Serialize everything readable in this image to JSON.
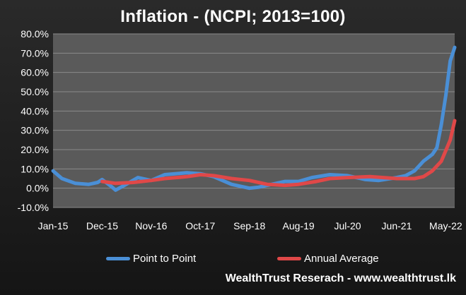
{
  "colors": {
    "background": "#1e1e1e",
    "plot_area": "#5a5a5a",
    "gridline": "#8a8a8a",
    "point_to_point": "#4a8fd6",
    "annual_average": "#e04848",
    "text": "#ffffff"
  },
  "chart_data": {
    "type": "line",
    "title": "Inflation - (NCPI; 2013=100)",
    "xlabel": "",
    "ylabel": "",
    "ylim": [
      -10,
      80
    ],
    "yticks": [
      -10,
      0,
      10,
      20,
      30,
      40,
      50,
      60,
      70,
      80
    ],
    "ytick_labels": [
      "-10.0%",
      "0.0%",
      "10.0%",
      "20.0%",
      "30.0%",
      "40.0%",
      "50.0%",
      "60.0%",
      "70.0%",
      "80.0%"
    ],
    "x_start": "Jan-15",
    "x_end": "Jul-22",
    "xtick_labels": [
      "Jan-15",
      "Dec-15",
      "Nov-16",
      "Oct-17",
      "Sep-18",
      "Aug-19",
      "Jul-20",
      "Jun-21",
      "May-22"
    ],
    "xtick_positions": [
      "Jan-15",
      "Dec-15",
      "Nov-16",
      "Oct-17",
      "Sep-18",
      "Aug-19",
      "Jul-20",
      "Jun-21",
      "May-22"
    ],
    "grid": true,
    "legend_position": "bottom",
    "series": [
      {
        "name": "Point to Point",
        "color": "#4a8fd6",
        "points": [
          [
            "Jan-15",
            9
          ],
          [
            "Mar-15",
            5
          ],
          [
            "Jun-15",
            2.5
          ],
          [
            "Sep-15",
            2
          ],
          [
            "Nov-15",
            3
          ],
          [
            "Dec-15",
            4.5
          ],
          [
            "Feb-16",
            1
          ],
          [
            "Mar-16",
            -1
          ],
          [
            "May-16",
            1.5
          ],
          [
            "Aug-16",
            5.5
          ],
          [
            "Nov-16",
            4
          ],
          [
            "Feb-17",
            7
          ],
          [
            "Jul-17",
            8
          ],
          [
            "Oct-17",
            7.5
          ],
          [
            "Jan-18",
            6
          ],
          [
            "May-18",
            2
          ],
          [
            "Jul-18",
            1
          ],
          [
            "Sep-18",
            0
          ],
          [
            "Nov-18",
            0.5
          ],
          [
            "Feb-19",
            2
          ],
          [
            "May-19",
            3.5
          ],
          [
            "Aug-19",
            3.5
          ],
          [
            "Nov-19",
            5.5
          ],
          [
            "Mar-20",
            7
          ],
          [
            "Jul-20",
            6.5
          ],
          [
            "Nov-20",
            4.5
          ],
          [
            "Feb-21",
            4
          ],
          [
            "Jun-21",
            5.5
          ],
          [
            "Aug-21",
            6.5
          ],
          [
            "Oct-21",
            9
          ],
          [
            "Dec-21",
            14
          ],
          [
            "Feb-22",
            17.5
          ],
          [
            "Mar-22",
            21
          ],
          [
            "Apr-22",
            33
          ],
          [
            "May-22",
            48
          ],
          [
            "Jun-22",
            66
          ],
          [
            "Jul-22",
            73
          ]
        ]
      },
      {
        "name": "Annual Average",
        "color": "#e04848",
        "points": [
          [
            "Dec-15",
            3.5
          ],
          [
            "Mar-16",
            2.5
          ],
          [
            "Jul-16",
            3
          ],
          [
            "Nov-16",
            4
          ],
          [
            "Feb-17",
            5
          ],
          [
            "Jul-17",
            6
          ],
          [
            "Oct-17",
            7
          ],
          [
            "Jan-18",
            6.5
          ],
          [
            "May-18",
            5
          ],
          [
            "Sep-18",
            4
          ],
          [
            "Jan-19",
            2
          ],
          [
            "May-19",
            1.5
          ],
          [
            "Aug-19",
            2
          ],
          [
            "Dec-19",
            3.5
          ],
          [
            "Mar-20",
            5
          ],
          [
            "Jul-20",
            5.5
          ],
          [
            "Dec-20",
            6
          ],
          [
            "Jun-21",
            5
          ],
          [
            "Oct-21",
            5
          ],
          [
            "Dec-21",
            6
          ],
          [
            "Feb-22",
            9
          ],
          [
            "Apr-22",
            14
          ],
          [
            "Jun-22",
            25
          ],
          [
            "Jul-22",
            35
          ]
        ]
      }
    ]
  },
  "legend": {
    "point_to_point_label": "Point to Point",
    "annual_average_label": "Annual Average"
  },
  "source_credit": "WealthTrust  Reserach - www.wealthtrust.lk"
}
